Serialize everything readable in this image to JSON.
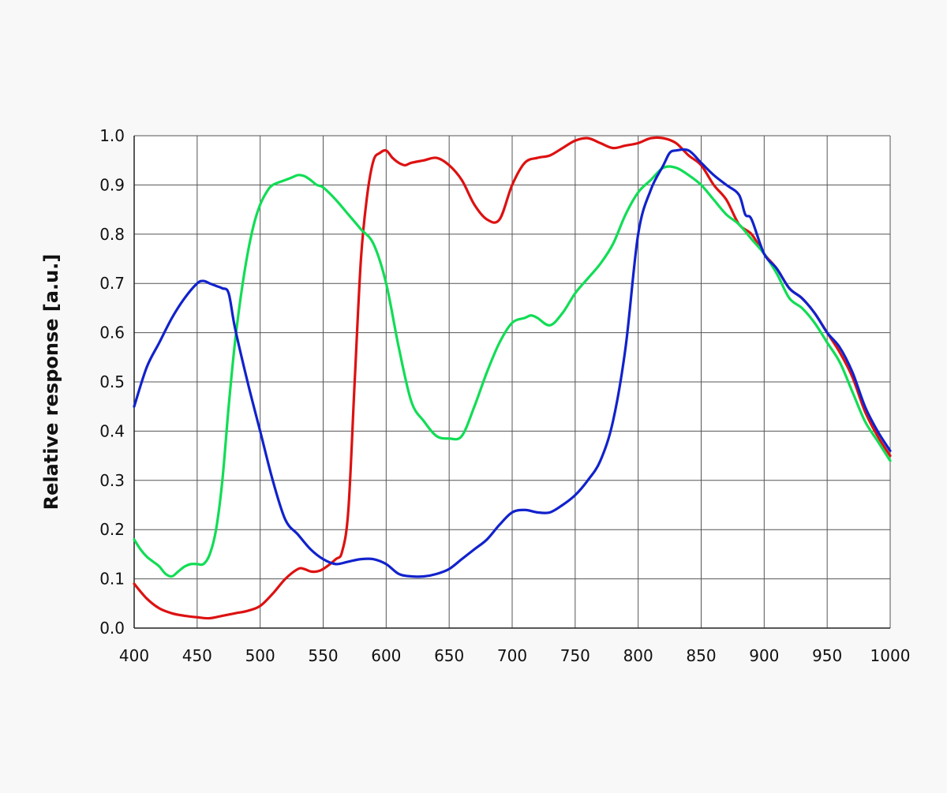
{
  "chart_data": {
    "type": "line",
    "title": "",
    "xlabel": "",
    "ylabel": "Relative  response [a.u.]",
    "xlim": [
      400,
      1000
    ],
    "ylim": [
      0.0,
      1.0
    ],
    "x_ticks": [
      "400",
      "450",
      "500",
      "550",
      "600",
      "650",
      "700",
      "750",
      "800",
      "850",
      "900",
      "950",
      "1000"
    ],
    "y_ticks": [
      "0.0",
      "0.1",
      "0.2",
      "0.3",
      "0.4",
      "0.5",
      "0.6",
      "0.7",
      "0.8",
      "0.9",
      "1.0"
    ],
    "grid": true,
    "legend": "none",
    "series": [
      {
        "color": "#dd1111",
        "x": [
          400,
          410,
          420,
          430,
          440,
          450,
          460,
          470,
          480,
          490,
          500,
          510,
          520,
          530,
          535,
          540,
          545,
          550,
          560,
          565,
          570,
          575,
          580,
          585,
          590,
          595,
          600,
          605,
          610,
          615,
          620,
          630,
          640,
          650,
          660,
          670,
          680,
          690,
          700,
          710,
          720,
          730,
          740,
          750,
          760,
          770,
          780,
          790,
          800,
          810,
          820,
          830,
          840,
          850,
          860,
          870,
          880,
          890,
          900,
          910,
          920,
          930,
          940,
          950,
          960,
          970,
          980,
          990,
          1000
        ],
        "y": [
          0.09,
          0.06,
          0.04,
          0.03,
          0.025,
          0.022,
          0.02,
          0.025,
          0.03,
          0.035,
          0.045,
          0.07,
          0.1,
          0.12,
          0.12,
          0.115,
          0.115,
          0.12,
          0.14,
          0.155,
          0.24,
          0.5,
          0.75,
          0.88,
          0.95,
          0.965,
          0.97,
          0.955,
          0.945,
          0.94,
          0.945,
          0.95,
          0.955,
          0.94,
          0.91,
          0.86,
          0.83,
          0.83,
          0.9,
          0.945,
          0.955,
          0.96,
          0.975,
          0.99,
          0.995,
          0.985,
          0.975,
          0.98,
          0.985,
          0.995,
          0.995,
          0.985,
          0.96,
          0.94,
          0.9,
          0.87,
          0.82,
          0.8,
          0.76,
          0.73,
          0.69,
          0.67,
          0.64,
          0.6,
          0.56,
          0.51,
          0.44,
          0.39,
          0.35
        ]
      },
      {
        "color": "#11dd55",
        "x": [
          400,
          405,
          410,
          415,
          420,
          425,
          430,
          435,
          440,
          445,
          450,
          455,
          460,
          465,
          470,
          475,
          480,
          485,
          490,
          495,
          500,
          505,
          510,
          520,
          525,
          530,
          535,
          540,
          545,
          550,
          560,
          570,
          580,
          590,
          600,
          610,
          620,
          630,
          640,
          650,
          660,
          670,
          680,
          690,
          700,
          710,
          715,
          720,
          730,
          740,
          750,
          760,
          770,
          780,
          790,
          800,
          810,
          820,
          830,
          840,
          850,
          860,
          870,
          880,
          890,
          900,
          910,
          920,
          930,
          940,
          950,
          960,
          970,
          980,
          990,
          1000
        ],
        "y": [
          0.18,
          0.16,
          0.145,
          0.135,
          0.125,
          0.11,
          0.105,
          0.115,
          0.125,
          0.13,
          0.13,
          0.13,
          0.15,
          0.2,
          0.3,
          0.45,
          0.58,
          0.68,
          0.76,
          0.82,
          0.86,
          0.885,
          0.9,
          0.91,
          0.915,
          0.92,
          0.918,
          0.91,
          0.9,
          0.895,
          0.87,
          0.84,
          0.81,
          0.78,
          0.7,
          0.57,
          0.46,
          0.42,
          0.39,
          0.385,
          0.39,
          0.45,
          0.52,
          0.58,
          0.62,
          0.63,
          0.635,
          0.63,
          0.615,
          0.64,
          0.68,
          0.71,
          0.74,
          0.78,
          0.84,
          0.885,
          0.91,
          0.935,
          0.935,
          0.92,
          0.9,
          0.87,
          0.84,
          0.82,
          0.79,
          0.76,
          0.72,
          0.67,
          0.65,
          0.62,
          0.58,
          0.54,
          0.48,
          0.42,
          0.38,
          0.34
        ]
      },
      {
        "color": "#1122cc",
        "x": [
          400,
          410,
          420,
          430,
          440,
          450,
          455,
          460,
          465,
          470,
          475,
          480,
          490,
          500,
          510,
          520,
          530,
          540,
          550,
          560,
          570,
          580,
          590,
          600,
          610,
          620,
          630,
          640,
          650,
          660,
          670,
          680,
          690,
          700,
          710,
          720,
          730,
          740,
          750,
          760,
          770,
          780,
          790,
          800,
          810,
          820,
          825,
          830,
          840,
          850,
          860,
          870,
          880,
          885,
          890,
          900,
          910,
          920,
          930,
          940,
          950,
          960,
          970,
          980,
          990,
          1000
        ],
        "y": [
          0.45,
          0.53,
          0.58,
          0.63,
          0.67,
          0.7,
          0.705,
          0.7,
          0.695,
          0.69,
          0.68,
          0.61,
          0.5,
          0.4,
          0.3,
          0.22,
          0.19,
          0.16,
          0.14,
          0.13,
          0.135,
          0.14,
          0.14,
          0.13,
          0.11,
          0.105,
          0.105,
          0.11,
          0.12,
          0.14,
          0.16,
          0.18,
          0.21,
          0.235,
          0.24,
          0.235,
          0.235,
          0.25,
          0.27,
          0.3,
          0.34,
          0.42,
          0.57,
          0.8,
          0.89,
          0.94,
          0.965,
          0.97,
          0.97,
          0.945,
          0.92,
          0.9,
          0.88,
          0.84,
          0.83,
          0.76,
          0.73,
          0.69,
          0.67,
          0.64,
          0.6,
          0.57,
          0.52,
          0.45,
          0.4,
          0.36
        ]
      }
    ]
  }
}
